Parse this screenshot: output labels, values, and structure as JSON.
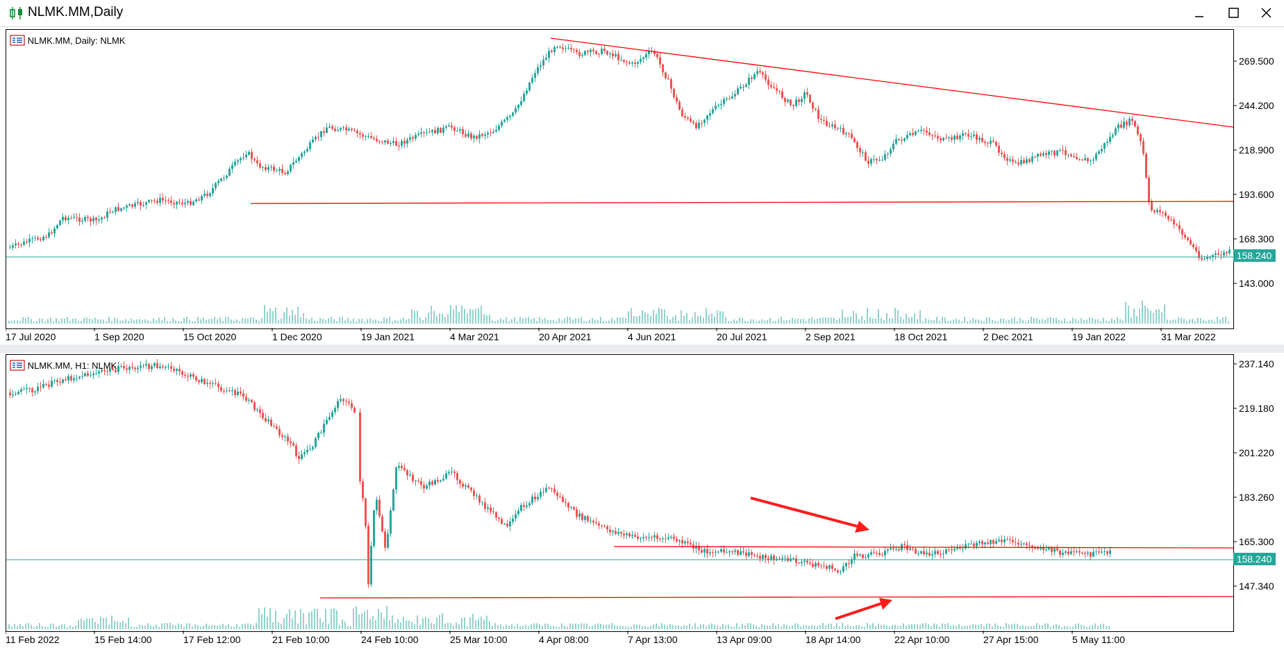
{
  "window": {
    "title": "NLMK.MM,Daily",
    "buttons": {
      "minimize": "minimize",
      "maximize": "maximize",
      "close": "close"
    }
  },
  "colors": {
    "bull": "#26a69a",
    "bear": "#ef5350",
    "trend": "#ff0000",
    "current_price_line": "#26a69a",
    "price_label_bg": "#26a69a"
  },
  "top_chart": {
    "label": "NLMK.MM, Daily:  NLMK",
    "current_price": "158.240",
    "price_ticks": [
      "269.500",
      "244.200",
      "218.900",
      "193.600",
      "168.300",
      "143.000"
    ],
    "date_ticks": [
      "17 Jul 2020",
      "1 Sep 2020",
      "15 Oct 2020",
      "1 Dec 2020",
      "19 Jan 2021",
      "4 Mar 2021",
      "20 Apr 2021",
      "4 Jun 2021",
      "20 Jul 2021",
      "2 Sep 2021",
      "18 Oct 2021",
      "2 Dec 2021",
      "19 Jan 2022",
      "31 Mar 2022"
    ]
  },
  "bottom_chart": {
    "label": "NLMK.MM, H1:  NLMK",
    "current_price": "158.240",
    "price_ticks": [
      "237.140",
      "219.180",
      "201.220",
      "183.260",
      "165.300",
      "147.340"
    ],
    "date_ticks": [
      "11 Feb 2022",
      "15 Feb 14:00",
      "17 Feb 12:00",
      "21 Feb 10:00",
      "24 Feb 10:00",
      "25 Mar 10:00",
      "4 Apr 08:00",
      "7 Apr 13:00",
      "13 Apr 09:00",
      "18 Apr 14:00",
      "22 Apr 10:00",
      "27 Apr 15:00",
      "5 May 11:00"
    ]
  }
}
